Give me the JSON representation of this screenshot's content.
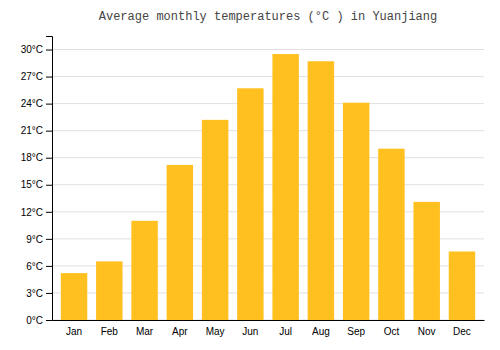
{
  "chart_data": {
    "type": "bar",
    "title": "Average monthly temperatures (°C ) in Yuanjiang",
    "categories": [
      "Jan",
      "Feb",
      "Mar",
      "Apr",
      "May",
      "Jun",
      "Jul",
      "Aug",
      "Sep",
      "Oct",
      "Nov",
      "Dec"
    ],
    "values": [
      5.2,
      6.5,
      11.0,
      17.2,
      22.2,
      25.7,
      29.5,
      28.7,
      24.1,
      19.0,
      13.1,
      7.6
    ],
    "color": "#FFC020",
    "ylim": [
      0,
      31.5
    ],
    "yticks": [
      {
        "value": 0,
        "label": "0°C"
      },
      {
        "value": 3,
        "label": "3°C"
      },
      {
        "value": 6,
        "label": "6°C"
      },
      {
        "value": 9,
        "label": "9°C"
      },
      {
        "value": 12,
        "label": "12°C"
      },
      {
        "value": 15,
        "label": "15°C"
      },
      {
        "value": 18,
        "label": "18°C"
      },
      {
        "value": 21,
        "label": "21°C"
      },
      {
        "value": 24,
        "label": "24°C"
      },
      {
        "value": 27,
        "label": "27°C"
      },
      {
        "value": 30,
        "label": "30°C"
      }
    ],
    "grid": true
  }
}
